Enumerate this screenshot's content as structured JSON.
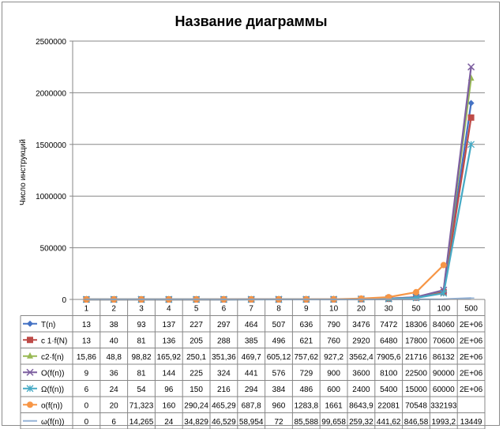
{
  "chart_data": {
    "type": "line",
    "title": "Название диаграммы",
    "xlabel": "",
    "ylabel": "Число инструкций",
    "ylim": [
      0,
      2500000
    ],
    "yticks": [
      "0",
      "500000",
      "1000000",
      "1500000",
      "2000000",
      "2500000"
    ],
    "grid": true,
    "legend": "data-table",
    "categories": [
      "1",
      "2",
      "3",
      "4",
      "5",
      "6",
      "7",
      "8",
      "9",
      "10",
      "20",
      "30",
      "50",
      "100",
      "500"
    ],
    "series": [
      {
        "name": "T(n)",
        "color": "#4472c4",
        "marker": "diamond",
        "values": [
          13,
          38,
          93,
          137,
          227,
          297,
          464,
          507,
          636,
          790,
          3476,
          7472,
          18306,
          84060,
          1900000
        ],
        "labels": [
          "13",
          "38",
          "93",
          "137",
          "227",
          "297",
          "464",
          "507",
          "636",
          "790",
          "3476",
          "7472",
          "18306",
          "84060",
          "2E+06"
        ]
      },
      {
        "name": "c 1·f(N)",
        "color": "#be4b48",
        "marker": "square",
        "values": [
          13,
          40,
          81,
          136,
          205,
          288,
          385,
          496,
          621,
          760,
          2920,
          6480,
          17800,
          70600,
          1760000
        ],
        "labels": [
          "13",
          "40",
          "81",
          "136",
          "205",
          "288",
          "385",
          "496",
          "621",
          "760",
          "2920",
          "6480",
          "17800",
          "70600",
          "2E+06"
        ]
      },
      {
        "name": "c2·f(n)",
        "color": "#98b954",
        "marker": "triangle",
        "values": [
          15.86,
          48.8,
          98.82,
          165.92,
          250.1,
          351.36,
          469.7,
          605.12,
          757.62,
          927.2,
          3562.4,
          7905.6,
          21716,
          86132,
          2140000
        ],
        "labels": [
          "15,86",
          "48,8",
          "98,82",
          "165,92",
          "250,1",
          "351,36",
          "469,7",
          "605,12",
          "757,62",
          "927,2",
          "3562,4",
          "7905,6",
          "21716",
          "86132",
          "2E+06"
        ]
      },
      {
        "name": "O(f(n))",
        "color": "#7d5fa0",
        "marker": "x",
        "values": [
          9,
          36,
          81,
          144,
          225,
          324,
          441,
          576,
          729,
          900,
          3600,
          8100,
          22500,
          90000,
          2250000
        ],
        "labels": [
          "9",
          "36",
          "81",
          "144",
          "225",
          "324",
          "441",
          "576",
          "729",
          "900",
          "3600",
          "8100",
          "22500",
          "90000",
          "2E+06"
        ]
      },
      {
        "name": "Ω(f(n))",
        "color": "#46aac5",
        "marker": "star",
        "values": [
          6,
          24,
          54,
          96,
          150,
          216,
          294,
          384,
          486,
          600,
          2400,
          5400,
          15000,
          60000,
          1500000
        ],
        "labels": [
          "6",
          "24",
          "54",
          "96",
          "150",
          "216",
          "294",
          "384",
          "486",
          "600",
          "2400",
          "5400",
          "15000",
          "60000",
          "2E+06"
        ]
      },
      {
        "name": "o(f(n))",
        "color": "#f79646",
        "marker": "circle",
        "values": [
          0,
          20,
          71.323,
          160,
          290.24,
          465.29,
          687.8,
          960,
          1283.8,
          1661,
          8643.9,
          22081,
          70548,
          332193,
          null
        ],
        "labels": [
          "0",
          "20",
          "71,323",
          "160",
          "290,24",
          "465,29",
          "687,8",
          "960",
          "1283,8",
          "1661",
          "8643,9",
          "22081",
          "70548",
          "332193",
          ""
        ]
      },
      {
        "name": "ω(f(n))",
        "color": "#95b3d7",
        "marker": "plus",
        "values": [
          0,
          6,
          14.265,
          24,
          34.829,
          46.529,
          58.954,
          72,
          85.588,
          99.658,
          259.32,
          441.62,
          846.58,
          1993.2,
          13449
        ],
        "labels": [
          "0",
          "6",
          "14,265",
          "24",
          "34,829",
          "46,529",
          "58,954",
          "72",
          "85,588",
          "99,658",
          "259,32",
          "441,62",
          "846,58",
          "1993,2",
          "13449"
        ]
      }
    ]
  }
}
